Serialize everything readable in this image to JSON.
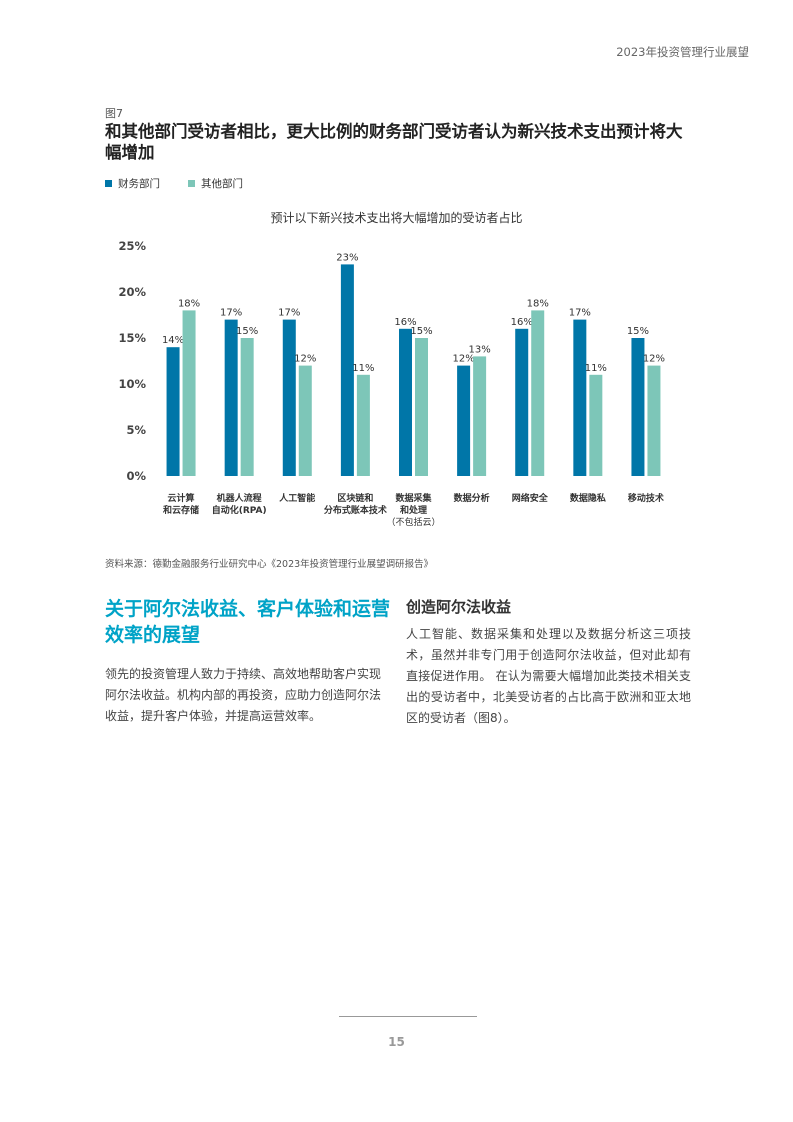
{
  "header": {
    "title": "2023年投资管理行业展望"
  },
  "figure": {
    "label": "图7",
    "title": "和其他部门受访者相比，更大比例的财务部门受访者认为新兴技术支出预计将大幅增加",
    "legend": [
      {
        "name": "财务部门",
        "color": "#0076a8"
      },
      {
        "name": "其他部门",
        "color": "#7dc6b8"
      }
    ],
    "chart_title": "预计以下新兴技术支出将大幅增加的受访者占比"
  },
  "chart_data": {
    "type": "bar",
    "title": "预计以下新兴技术支出将大幅增加的受访者占比",
    "categories": [
      [
        "云计算",
        "和云存储"
      ],
      [
        "机器人流程",
        "自动化(RPA)"
      ],
      [
        "人工智能"
      ],
      [
        "区块链和",
        "分布式账本技术"
      ],
      [
        "数据采集",
        "和处理",
        "（不包括云）"
      ],
      [
        "数据分析"
      ],
      [
        "网络安全"
      ],
      [
        "数据隐私"
      ],
      [
        "移动技术"
      ]
    ],
    "series": [
      {
        "name": "财务部门",
        "color": "#0076a8",
        "values": [
          14,
          17,
          17,
          23,
          16,
          12,
          16,
          17,
          15
        ]
      },
      {
        "name": "其他部门",
        "color": "#7dc6b8",
        "values": [
          18,
          15,
          12,
          11,
          15,
          13,
          18,
          11,
          12
        ]
      }
    ],
    "value_suffix": "%",
    "yticks": [
      "0%",
      "5%",
      "10%",
      "15%",
      "20%",
      "25%"
    ],
    "ylim": [
      0,
      25
    ],
    "grid": false,
    "legend_position": "top-left"
  },
  "source": "资料来源：德勤金融服务行业研究中心《2023年投资管理行业展望调研报告》",
  "left_section": {
    "heading": "关于阿尔法收益、客户体验和运营效率的展望",
    "body": "领先的投资管理人致力于持续、高效地帮助客户实现阿尔法收益。机构内部的再投资，应助力创造阿尔法收益，提升客户体验，并提高运营效率。"
  },
  "right_section": {
    "heading": "创造阿尔法收益",
    "body": "人工智能、数据采集和处理以及数据分析这三项技术，虽然并非专门用于创造阿尔法收益，但对此却有直接促进作用。 在认为需要大幅增加此类技术相关支出的受访者中，北美受访者的占比高于欧洲和亚太地区的受访者（图8）。"
  },
  "footer": {
    "page_number": "15"
  }
}
